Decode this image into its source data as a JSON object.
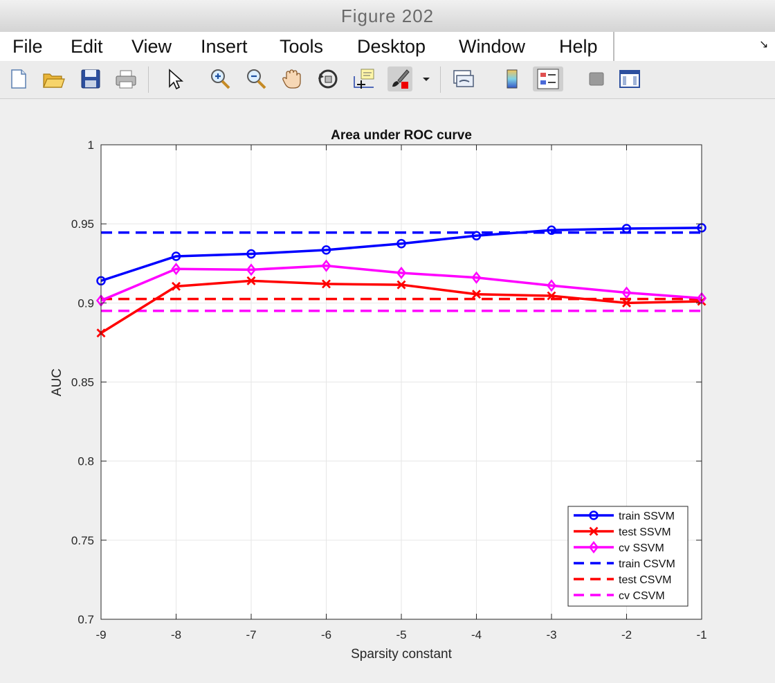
{
  "window": {
    "title": "Figure 202"
  },
  "menu": [
    "File",
    "Edit",
    "View",
    "Insert",
    "Tools",
    "Desktop",
    "Window",
    "Help"
  ],
  "toolbar": [
    {
      "icon": "new-figure-icon"
    },
    {
      "icon": "open-file-icon"
    },
    {
      "icon": "save-icon"
    },
    {
      "icon": "print-icon"
    },
    {
      "icon": "edit-plot-arrow-icon"
    },
    {
      "icon": "zoom-in-icon"
    },
    {
      "icon": "zoom-out-icon"
    },
    {
      "icon": "pan-hand-icon"
    },
    {
      "icon": "rotate-3d-icon"
    },
    {
      "icon": "data-cursor-icon"
    },
    {
      "icon": "brush-icon"
    },
    {
      "icon": "brush-dropdown-icon"
    },
    {
      "icon": "link-plot-icon"
    },
    {
      "icon": "colorbar-icon"
    },
    {
      "icon": "legend-icon"
    },
    {
      "icon": "hide-plot-tools-icon"
    },
    {
      "icon": "show-plot-tools-icon"
    }
  ],
  "chart_data": {
    "type": "line",
    "title": "Area under ROC curve",
    "xlabel": "Sparsity constant",
    "ylabel": "AUC",
    "xlim": [
      -9,
      -1
    ],
    "ylim": [
      0.7,
      1
    ],
    "xticks": [
      "-9",
      "-8",
      "-7",
      "-6",
      "-5",
      "-4",
      "-3",
      "-2",
      "-1"
    ],
    "yticks": [
      "0.7",
      "0.75",
      "0.8",
      "0.85",
      "0.9",
      "0.95",
      "1"
    ],
    "grid": true,
    "legend_position": "bottom-right",
    "x": [
      -9,
      -8,
      -7,
      -6,
      -5,
      -4,
      -3,
      -2,
      -1
    ],
    "series": [
      {
        "name": "train SSVM",
        "color": "#0000ff",
        "style": "solid",
        "marker": "circle",
        "values": [
          0.914,
          0.9295,
          0.931,
          0.9335,
          0.9375,
          0.9425,
          0.946,
          0.947,
          0.9475
        ]
      },
      {
        "name": "test SSVM",
        "color": "#ff0000",
        "style": "solid",
        "marker": "x",
        "values": [
          0.881,
          0.9105,
          0.914,
          0.912,
          0.9115,
          0.9055,
          0.9045,
          0.9,
          0.901
        ]
      },
      {
        "name": "cv SSVM",
        "color": "#ff00ff",
        "style": "solid",
        "marker": "diamond",
        "values": [
          0.9015,
          0.9215,
          0.921,
          0.9235,
          0.919,
          0.916,
          0.911,
          0.9065,
          0.903
        ]
      },
      {
        "name": "train CSVM",
        "color": "#0000ff",
        "style": "dashed",
        "marker": "none",
        "values": [
          0.9445,
          0.9445,
          0.9445,
          0.9445,
          0.9445,
          0.9445,
          0.9445,
          0.9445,
          0.9445
        ]
      },
      {
        "name": "test CSVM",
        "color": "#ff0000",
        "style": "dashed",
        "marker": "none",
        "values": [
          0.9025,
          0.9025,
          0.9025,
          0.9025,
          0.9025,
          0.9025,
          0.9025,
          0.9025,
          0.9025
        ]
      },
      {
        "name": "cv CSVM",
        "color": "#ff00ff",
        "style": "dashed",
        "marker": "none",
        "values": [
          0.895,
          0.895,
          0.895,
          0.895,
          0.895,
          0.895,
          0.895,
          0.895,
          0.895
        ]
      }
    ]
  }
}
